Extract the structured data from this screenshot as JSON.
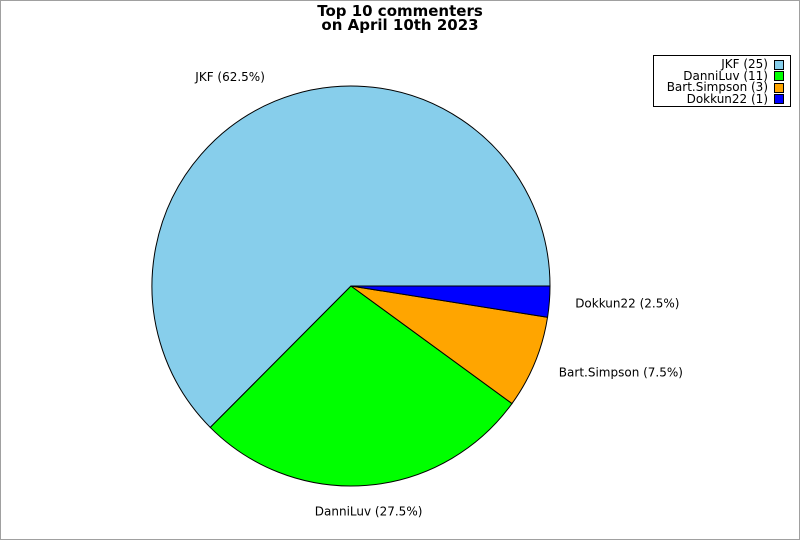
{
  "chart_data": {
    "type": "pie",
    "title": "Top 10 commenters",
    "subtitle": "on April 10th 2023",
    "slices": [
      {
        "name": "JKF",
        "value": 25,
        "label": "JKF (62.5%)",
        "legend": "JKF (25)",
        "color": "#87ceeb"
      },
      {
        "name": "DanniLuv",
        "value": 11,
        "label": "DanniLuv (27.5%)",
        "legend": "DanniLuv (11)",
        "color": "#00ff00"
      },
      {
        "name": "Bart.Simpson",
        "value": 3,
        "label": "Bart.Simpson (7.5%)",
        "legend": "Bart.Simpson (3)",
        "color": "#ffa500"
      },
      {
        "name": "Dokkun22",
        "value": 1,
        "label": "Dokkun22 (2.5%)",
        "legend": "Dokkun22 (1)",
        "color": "#0000ff"
      }
    ],
    "legend_position": "top-right"
  }
}
